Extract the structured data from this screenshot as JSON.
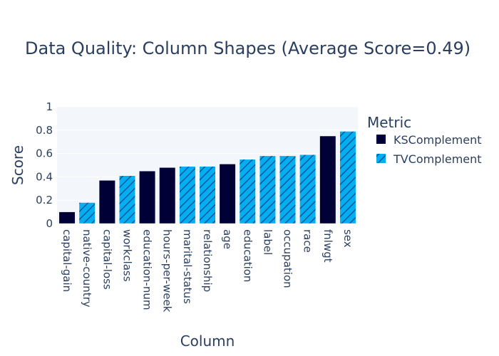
{
  "chart_data": {
    "type": "bar",
    "title": "Data Quality: Column Shapes (Average Score=0.49)",
    "xlabel": "Column",
    "ylabel": "Score",
    "ylim": [
      0,
      1
    ],
    "yticks": [
      0,
      0.2,
      0.4,
      0.6,
      0.8,
      1
    ],
    "ytick_labels": [
      "0",
      "0.2",
      "0.4",
      "0.6",
      "0.8",
      "1"
    ],
    "grid": true,
    "legend": {
      "title": "Metric",
      "placement": "right"
    },
    "series_styles": {
      "KSComplement": {
        "color": "#000036",
        "pattern": "none"
      },
      "TVComplement": {
        "color": "#03AFF1",
        "pattern": "diagonal-hatch",
        "hatch_color": "#01579B"
      }
    },
    "series": [
      {
        "name": "KSComplement"
      },
      {
        "name": "TVComplement"
      }
    ],
    "bars": [
      {
        "category": "capital-gain",
        "value": 0.1,
        "series": "KSComplement"
      },
      {
        "category": "native-country",
        "value": 0.18,
        "series": "TVComplement"
      },
      {
        "category": "capital-loss",
        "value": 0.37,
        "series": "KSComplement"
      },
      {
        "category": "workclass",
        "value": 0.41,
        "series": "TVComplement"
      },
      {
        "category": "education-num",
        "value": 0.45,
        "series": "KSComplement"
      },
      {
        "category": "hours-per-week",
        "value": 0.48,
        "series": "KSComplement"
      },
      {
        "category": "marital-status",
        "value": 0.49,
        "series": "TVComplement"
      },
      {
        "category": "relationship",
        "value": 0.49,
        "series": "TVComplement"
      },
      {
        "category": "age",
        "value": 0.51,
        "series": "KSComplement"
      },
      {
        "category": "education",
        "value": 0.55,
        "series": "TVComplement"
      },
      {
        "category": "label",
        "value": 0.58,
        "series": "TVComplement"
      },
      {
        "category": "occupation",
        "value": 0.58,
        "series": "TVComplement"
      },
      {
        "category": "race",
        "value": 0.59,
        "series": "TVComplement"
      },
      {
        "category": "fnlwgt",
        "value": 0.75,
        "series": "KSComplement"
      },
      {
        "category": "sex",
        "value": 0.79,
        "series": "TVComplement"
      }
    ]
  }
}
